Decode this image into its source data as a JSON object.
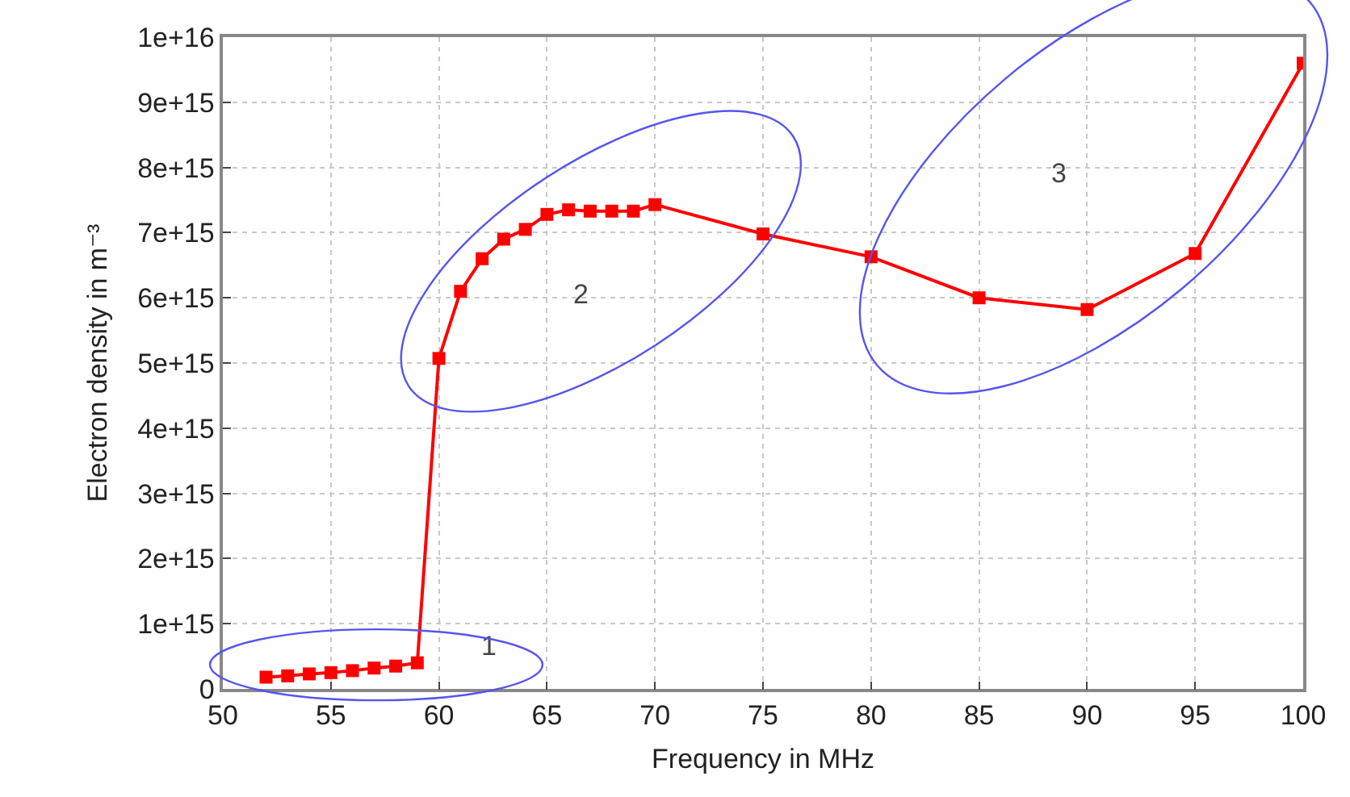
{
  "chart_data": {
    "type": "line",
    "xlabel": "Frequency in MHz",
    "ylabel": "Electron density in m⁻³",
    "x": [
      52,
      53,
      54,
      55,
      56,
      57,
      58,
      59,
      60,
      61,
      62,
      63,
      64,
      65,
      66,
      67,
      68,
      69,
      70,
      75,
      80,
      85,
      90,
      95,
      100
    ],
    "series": [
      {
        "color": "#ff0000",
        "values": [
          180000000000000.0,
          200000000000000.0,
          230000000000000.0,
          250000000000000.0,
          280000000000000.0,
          320000000000000.0,
          350000000000000.0,
          400000000000000.0,
          5070000000000000.0,
          6100000000000000.0,
          6600000000000000.0,
          6900000000000000.0,
          7050000000000000.0,
          7280000000000000.0,
          7350000000000000.0,
          7330000000000000.0,
          7330000000000000.0,
          7330000000000000.0,
          7430000000000000.0,
          6980000000000000.0,
          6630000000000000.0,
          6000000000000000.0,
          5820000000000000.0,
          6680000000000000.0,
          9600000000000000.0
        ]
      }
    ],
    "xlim": [
      50,
      100
    ],
    "xticks": [
      50,
      55,
      60,
      65,
      70,
      75,
      80,
      85,
      90,
      95,
      100
    ],
    "ylim": [
      0,
      1e+16
    ],
    "yticks": [
      0,
      {
        "value": 1000000000000000.0,
        "label": "1e+15"
      },
      {
        "value": 2000000000000000.0,
        "label": "2e+15"
      },
      {
        "value": 3000000000000000.0,
        "label": "3e+15"
      },
      {
        "value": 4000000000000000.0,
        "label": "4e+15"
      },
      {
        "value": 5000000000000000.0,
        "label": "5e+15"
      },
      {
        "value": 6000000000000000.0,
        "label": "6e+15"
      },
      {
        "value": 7000000000000000.0,
        "label": "7e+15"
      },
      {
        "value": 8000000000000000.0,
        "label": "8e+15"
      },
      {
        "value": 9000000000000000.0,
        "label": "9e+15"
      },
      {
        "value": 1e+16,
        "label": "1e+16"
      }
    ],
    "annotations": [
      "1",
      "2",
      "3"
    ],
    "grid": true,
    "marker": "square",
    "line_style": "solid"
  }
}
